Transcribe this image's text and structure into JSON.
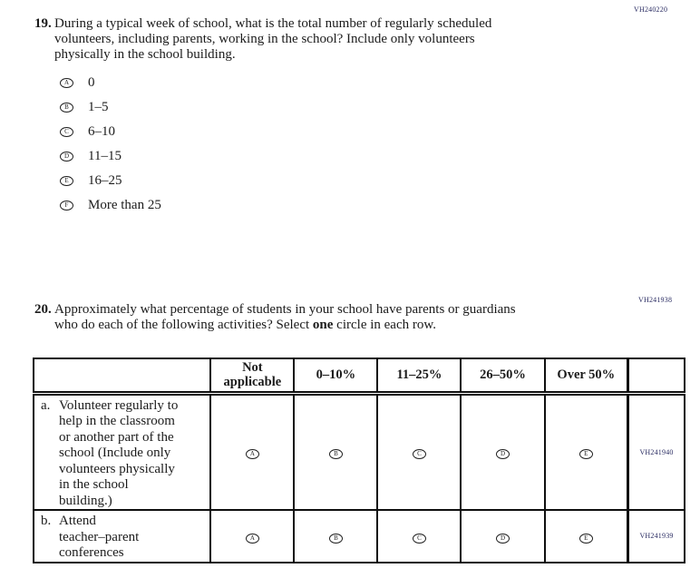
{
  "codes": {
    "q19": "VH240220",
    "q20": "VH241938"
  },
  "q19": {
    "number": "19.",
    "text": "During a typical week of school, what is the total number of regularly scheduled\nvolunteers, including parents, working in the school? Include only volunteers\nphysically in the school building.",
    "options": [
      {
        "letter": "A",
        "label": "0"
      },
      {
        "letter": "B",
        "label": "1–5"
      },
      {
        "letter": "C",
        "label": "6–10"
      },
      {
        "letter": "D",
        "label": "11–15"
      },
      {
        "letter": "E",
        "label": "16–25"
      },
      {
        "letter": "F",
        "label": "More than 25"
      }
    ]
  },
  "q20": {
    "number": "20.",
    "text_part1": "Approximately what percentage of students in your school have parents or guardians\nwho do each of the following activities? Select ",
    "text_bold": "one",
    "text_part2": " circle in each row.",
    "table": {
      "columns": [
        "Not\napplicable",
        "0–10%",
        "11–25%",
        "26–50%",
        "Over 50%"
      ],
      "rows": [
        {
          "prefix": "a.",
          "label": "Volunteer regularly to\nhelp in the classroom\nor another part of the\nschool (Include only\nvolunteers physically\nin the school\nbuilding.)",
          "letters": [
            "A",
            "B",
            "C",
            "D",
            "E"
          ],
          "code": "VH241940"
        },
        {
          "prefix": "b.",
          "label": "Attend\nteacher–parent\nconferences",
          "letters": [
            "A",
            "B",
            "C",
            "D",
            "E"
          ],
          "code": "VH241939"
        }
      ]
    }
  },
  "colors": {
    "text": "#1b1b1b",
    "accession_code": "#2b2d63",
    "border": "#0f0f0f"
  }
}
